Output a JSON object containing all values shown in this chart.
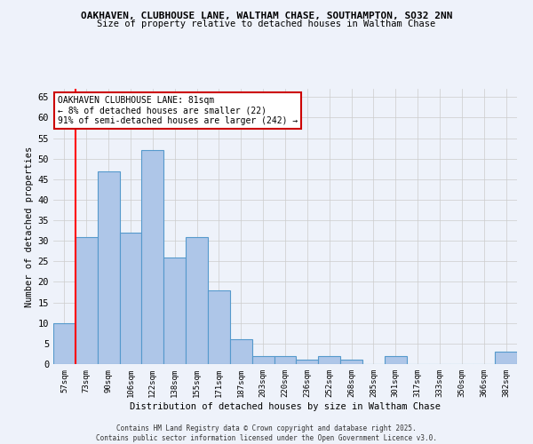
{
  "title": "OAKHAVEN, CLUBHOUSE LANE, WALTHAM CHASE, SOUTHAMPTON, SO32 2NN",
  "subtitle": "Size of property relative to detached houses in Waltham Chase",
  "xlabel": "Distribution of detached houses by size in Waltham Chase",
  "ylabel": "Number of detached properties",
  "categories": [
    "57sqm",
    "73sqm",
    "90sqm",
    "106sqm",
    "122sqm",
    "138sqm",
    "155sqm",
    "171sqm",
    "187sqm",
    "203sqm",
    "220sqm",
    "236sqm",
    "252sqm",
    "268sqm",
    "285sqm",
    "301sqm",
    "317sqm",
    "333sqm",
    "350sqm",
    "366sqm",
    "382sqm"
  ],
  "values": [
    10,
    31,
    47,
    32,
    52,
    26,
    31,
    18,
    6,
    2,
    2,
    1,
    2,
    1,
    0,
    2,
    0,
    0,
    0,
    0,
    3
  ],
  "bar_color": "#aec6e8",
  "bar_edge_color": "#5599cc",
  "background_color": "#eef2fa",
  "grid_color": "#cccccc",
  "red_line_index": 1,
  "annotation_text": "OAKHAVEN CLUBHOUSE LANE: 81sqm\n← 8% of detached houses are smaller (22)\n91% of semi-detached houses are larger (242) →",
  "annotation_box_color": "#ffffff",
  "annotation_border_color": "#cc0000",
  "ylim": [
    0,
    67
  ],
  "yticks": [
    0,
    5,
    10,
    15,
    20,
    25,
    30,
    35,
    40,
    45,
    50,
    55,
    60,
    65
  ],
  "footer_line1": "Contains HM Land Registry data © Crown copyright and database right 2025.",
  "footer_line2": "Contains public sector information licensed under the Open Government Licence v3.0."
}
